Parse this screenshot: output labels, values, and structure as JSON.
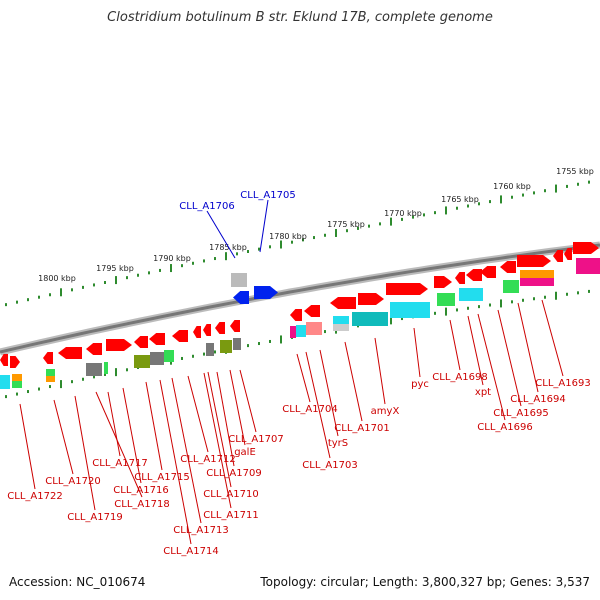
{
  "title": "Clostridium botulinum B str. Eklund 17B, complete genome",
  "accession": "Accession: NC_010674",
  "summary": "Topology: circular; Length: 3,800,327 bp; Genes: 3,537",
  "colors": {
    "backbone": "#888888",
    "ticks": "#2e8b2e",
    "label_red": "#cc0000",
    "label_blue": "#0000cc",
    "gene_red": "#ff0000",
    "gene_blue": "#0022ee",
    "cog_cyan": "#22ddee",
    "cog_green": "#33dd55",
    "cog_olive": "#7a9a10",
    "cog_gray": "#777777",
    "cog_orange": "#ff9900",
    "cog_magenta": "#ee1188",
    "cog_pink": "#ff8888"
  },
  "scale_labels": [
    "1755 kbp",
    "1760 kbp",
    "1765 kbp",
    "1770 kbp",
    "1775 kbp",
    "1780 kbp",
    "1785 kbp",
    "1790 kbp",
    "1795 kbp",
    "1800 kbp"
  ],
  "gene_labels": [
    {
      "name": "CLL_A1706",
      "color": "blue"
    },
    {
      "name": "CLL_A1705",
      "color": "blue"
    },
    {
      "name": "CLL_A1693",
      "color": "red"
    },
    {
      "name": "CLL_A1694",
      "color": "red"
    },
    {
      "name": "CLL_A1695",
      "color": "red"
    },
    {
      "name": "CLL_A1696",
      "color": "red"
    },
    {
      "name": "xpt",
      "color": "red"
    },
    {
      "name": "CLL_A1698",
      "color": "red"
    },
    {
      "name": "pyc",
      "color": "red"
    },
    {
      "name": "amyX",
      "color": "red"
    },
    {
      "name": "CLL_A1701",
      "color": "red"
    },
    {
      "name": "tyrS",
      "color": "red"
    },
    {
      "name": "CLL_A1703",
      "color": "red"
    },
    {
      "name": "CLL_A1704",
      "color": "red"
    },
    {
      "name": "CLL_A1707",
      "color": "red"
    },
    {
      "name": "galE",
      "color": "red"
    },
    {
      "name": "CLL_A1709",
      "color": "red"
    },
    {
      "name": "CLL_A1710",
      "color": "red"
    },
    {
      "name": "CLL_A1711",
      "color": "red"
    },
    {
      "name": "CLL_A1712",
      "color": "red"
    },
    {
      "name": "CLL_A1713",
      "color": "red"
    },
    {
      "name": "CLL_A1714",
      "color": "red"
    },
    {
      "name": "CLL_A1715",
      "color": "red"
    },
    {
      "name": "CLL_A1716",
      "color": "red"
    },
    {
      "name": "CLL_A1717",
      "color": "red"
    },
    {
      "name": "CLL_A1718",
      "color": "red"
    },
    {
      "name": "CLL_A1719",
      "color": "red"
    },
    {
      "name": "CLL_A1720",
      "color": "red"
    },
    {
      "name": "CLL_A1722",
      "color": "red"
    }
  ]
}
